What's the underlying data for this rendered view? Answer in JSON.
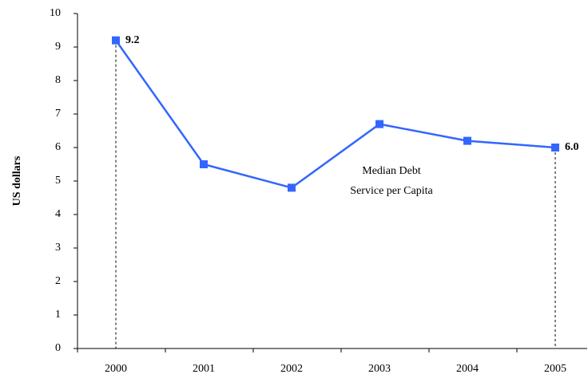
{
  "chart_data": {
    "type": "line",
    "ylabel": "US dollars",
    "annotation": [
      "Median Debt",
      "Service per Capita"
    ],
    "categories": [
      "2000",
      "2001",
      "2002",
      "2003",
      "2004",
      "2005"
    ],
    "series": [
      {
        "name": "Median Debt Service per Capita",
        "color": "#3366ff",
        "values": [
          9.2,
          5.5,
          4.8,
          6.7,
          6.2,
          6.0
        ],
        "value_labels": [
          "9.2",
          null,
          null,
          null,
          null,
          "6.0"
        ]
      }
    ],
    "ylim": [
      0,
      10
    ],
    "yticks": [
      0,
      1,
      2,
      3,
      4,
      5,
      6,
      7,
      8,
      9,
      10
    ],
    "grid": false
  }
}
